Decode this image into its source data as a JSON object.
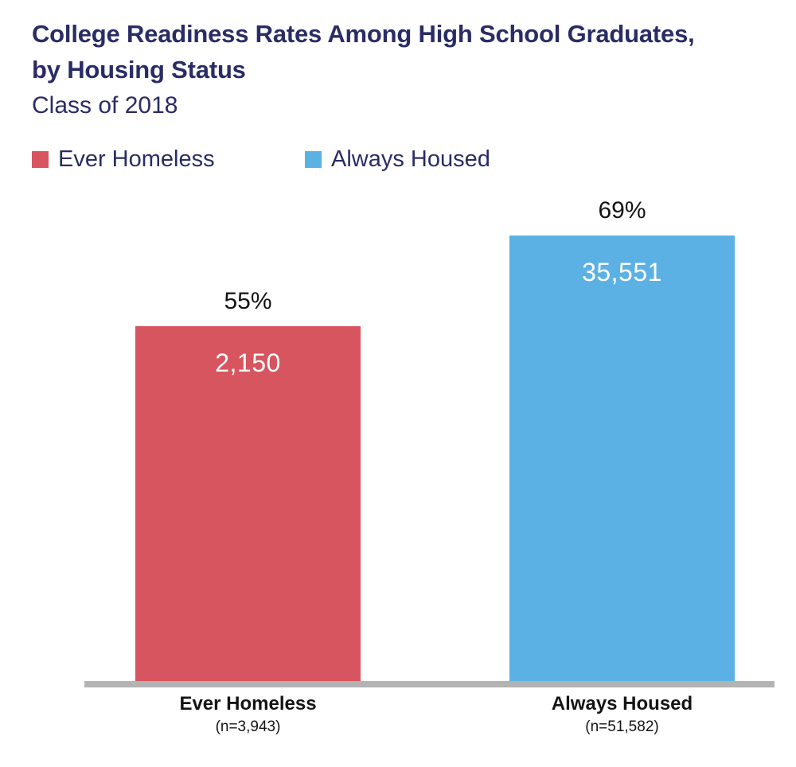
{
  "header": {
    "title_line1": "College Readiness Rates Among High School Graduates,",
    "title_line2": "by Housing Status",
    "subtitle": "Class of 2018"
  },
  "legend": {
    "items": [
      {
        "label": "Ever Homeless",
        "color": "#D6555F"
      },
      {
        "label": "Always Housed",
        "color": "#5BB1E3"
      }
    ]
  },
  "colors": {
    "title_navy": "#2A2C66",
    "ever_homeless_red": "#D6555F",
    "always_housed_blue": "#5BB1E3",
    "axis_gray": "#B3B3B3",
    "label_black": "#141414",
    "bar_value_white": "#FFFFFF"
  },
  "chart_data": {
    "type": "bar",
    "title": "College Readiness Rates Among High School Graduates, by Housing Status",
    "subtitle": "Class of 2018",
    "categories": [
      "Ever Homeless",
      "Always Housed"
    ],
    "values_percent": [
      55,
      69
    ],
    "percent_labels": [
      "55%",
      "69%"
    ],
    "bar_count_labels": [
      "2,150",
      "35,551"
    ],
    "sample_size_labels": [
      "(n=3,943)",
      "(n=51,582)"
    ],
    "bar_colors": [
      "#D6555F",
      "#5BB1E3"
    ],
    "xlabel": "",
    "ylabel": "",
    "ylim": [
      0,
      100
    ],
    "grid": false,
    "legend_position": "top-left",
    "legend_entries": [
      "Ever Homeless",
      "Always Housed"
    ]
  }
}
